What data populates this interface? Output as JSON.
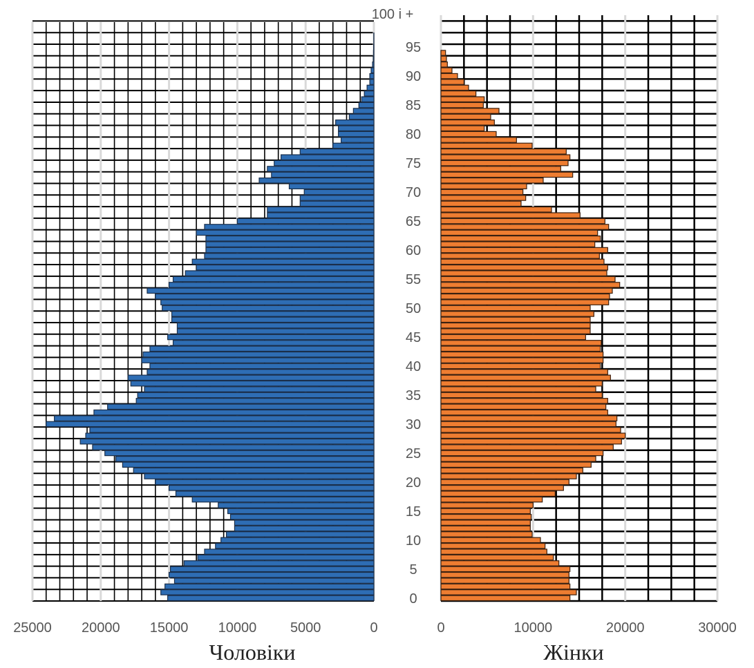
{
  "chart_data": [
    {
      "type": "bar",
      "orientation": "horizontal",
      "direction": "right-to-left",
      "title": "Чоловіки",
      "ylabel": "",
      "xlim": [
        0,
        25000
      ],
      "x_ticks": [
        "25000",
        "20000",
        "15000",
        "10000",
        "5000",
        "0"
      ],
      "color": "#2E6DB4",
      "categories": [
        "0",
        "1",
        "2",
        "3",
        "4",
        "5",
        "6",
        "7",
        "8",
        "9",
        "10",
        "11",
        "12",
        "13",
        "14",
        "15",
        "16",
        "17",
        "18",
        "19",
        "20",
        "21",
        "22",
        "23",
        "24",
        "25",
        "26",
        "27",
        "28",
        "29",
        "30",
        "31",
        "32",
        "33",
        "34",
        "35",
        "36",
        "37",
        "38",
        "39",
        "40",
        "41",
        "42",
        "43",
        "44",
        "45",
        "46",
        "47",
        "48",
        "49",
        "50",
        "51",
        "52",
        "53",
        "54",
        "55",
        "56",
        "57",
        "58",
        "59",
        "60",
        "61",
        "62",
        "63",
        "64",
        "65",
        "66",
        "67",
        "68",
        "69",
        "70",
        "71",
        "72",
        "73",
        "74",
        "75",
        "76",
        "77",
        "78",
        "79",
        "80",
        "81",
        "82",
        "83",
        "84",
        "85",
        "86",
        "87",
        "88",
        "89",
        "90",
        "91",
        "92",
        "93",
        "94",
        "95",
        "96",
        "97",
        "98",
        "99",
        "100 і +"
      ],
      "values": [
        15100,
        15600,
        15300,
        14600,
        15000,
        14900,
        13900,
        12900,
        12400,
        11600,
        11200,
        10800,
        10200,
        10200,
        10500,
        10700,
        11400,
        13300,
        14500,
        15000,
        16000,
        16800,
        17600,
        18400,
        18900,
        19700,
        20600,
        21500,
        21100,
        20800,
        24000,
        23400,
        20500,
        19500,
        17400,
        17300,
        16800,
        17800,
        18000,
        16600,
        16400,
        17000,
        16900,
        16400,
        14700,
        15100,
        14400,
        14400,
        14800,
        14800,
        15500,
        15600,
        16000,
        16600,
        15000,
        14700,
        13800,
        13000,
        13300,
        12400,
        12300,
        12300,
        12300,
        13000,
        12400,
        10000,
        7800,
        7800,
        5400,
        5400,
        5100,
        6200,
        8400,
        7500,
        7800,
        7300,
        6800,
        5400,
        3000,
        2400,
        2600,
        2600,
        2800,
        1800,
        1500,
        1100,
        900,
        700,
        500,
        300,
        300,
        200,
        100,
        50,
        30,
        20,
        10,
        10,
        0,
        0,
        0
      ]
    },
    {
      "type": "bar",
      "orientation": "horizontal",
      "title": "Жінки",
      "ylabel": "",
      "xlim": [
        0,
        30000
      ],
      "x_ticks": [
        "0",
        "10000",
        "20000",
        "30000"
      ],
      "color": "#EE7D31",
      "categories": [
        "0",
        "1",
        "2",
        "3",
        "4",
        "5",
        "6",
        "7",
        "8",
        "9",
        "10",
        "11",
        "12",
        "13",
        "14",
        "15",
        "16",
        "17",
        "18",
        "19",
        "20",
        "21",
        "22",
        "23",
        "24",
        "25",
        "26",
        "27",
        "28",
        "29",
        "30",
        "31",
        "32",
        "33",
        "34",
        "35",
        "36",
        "37",
        "38",
        "39",
        "40",
        "41",
        "42",
        "43",
        "44",
        "45",
        "46",
        "47",
        "48",
        "49",
        "50",
        "51",
        "52",
        "53",
        "54",
        "55",
        "56",
        "57",
        "58",
        "59",
        "60",
        "61",
        "62",
        "63",
        "64",
        "65",
        "66",
        "67",
        "68",
        "69",
        "70",
        "71",
        "72",
        "73",
        "74",
        "75",
        "76",
        "77",
        "78",
        "79",
        "80",
        "81",
        "82",
        "83",
        "84",
        "85",
        "86",
        "87",
        "88",
        "89",
        "90",
        "91",
        "92",
        "93",
        "94",
        "95",
        "96",
        "97",
        "98",
        "99",
        "100 і +"
      ],
      "values": [
        14000,
        14700,
        14000,
        13900,
        13900,
        14000,
        12800,
        12200,
        11500,
        11300,
        10800,
        9900,
        9700,
        9700,
        9800,
        9700,
        10000,
        11000,
        12400,
        13300,
        13900,
        14700,
        15400,
        16300,
        16800,
        17600,
        18700,
        19600,
        20000,
        19500,
        19000,
        19100,
        18100,
        17900,
        18100,
        17500,
        16800,
        17500,
        18400,
        18100,
        17300,
        17600,
        17600,
        17300,
        17400,
        15700,
        16200,
        16200,
        16200,
        16600,
        16200,
        18200,
        18300,
        18600,
        19400,
        18900,
        18000,
        18100,
        17700,
        17200,
        18100,
        16700,
        17300,
        17000,
        18200,
        17800,
        15100,
        12000,
        8700,
        9200,
        8900,
        9300,
        11100,
        14300,
        13000,
        13800,
        14000,
        13600,
        9900,
        8200,
        6000,
        4700,
        5800,
        5400,
        6300,
        4600,
        4700,
        3800,
        3000,
        2500,
        1800,
        1200,
        700,
        600,
        500,
        0,
        0,
        0,
        0,
        0,
        0
      ]
    }
  ],
  "age_ticks": [
    "0",
    "5",
    "10",
    "15",
    "20",
    "25",
    "30",
    "35",
    "40",
    "45",
    "50",
    "55",
    "60",
    "65",
    "70",
    "75",
    "80",
    "85",
    "90",
    "95",
    "100 і +"
  ],
  "panel_titles": {
    "men": "Чоловіки",
    "women": "Жінки"
  },
  "colors": {
    "men": "#2E6DB4",
    "women": "#EE7D31",
    "grid": "#000000",
    "major_grid": "#d9d9d9"
  }
}
